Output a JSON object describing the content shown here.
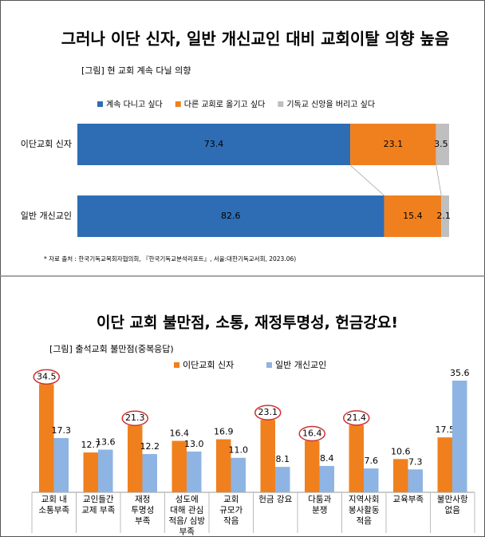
{
  "chart_data": [
    {
      "type": "stacked-bar-horizontal",
      "title": "그러나 이단 신자, 일반 개신교인 대비 교회이탈 의향 높음",
      "subtitle": "[그림] 현 교회 계속 다닐 의향",
      "note": "* 자료 출처 : 한국기독교목회자협의회, 『한국기독교분석리포트』, 서울:대한기독교서회, 2023.06)",
      "categories": [
        "이단교회 신자",
        "일반 개신교인"
      ],
      "series": [
        {
          "name": "계속 다니고 싶다",
          "color": "#2e6db4",
          "values": [
            73.4,
            82.6
          ]
        },
        {
          "name": "다른 교회로 옮기고 싶다",
          "color": "#f0801e",
          "values": [
            23.1,
            15.4
          ]
        },
        {
          "name": "기독교 신앙을 버리고 싶다",
          "color": "#bfbfbf",
          "values": [
            3.5,
            2.1
          ]
        }
      ]
    },
    {
      "type": "bar",
      "title": "이단 교회 불만점, 소통, 재정투명성, 헌금강요!",
      "subtitle": "[그림] 출석교회 불만점(중복응답)",
      "categories": [
        "교회 내\n소통부족",
        "교인들간\n교제 부족",
        "재정\n투명성\n부족",
        "성도에\n대해 관심\n적음/ 심방\n부족",
        "교회\n규모가\n작음",
        "헌금 강요",
        "다툼과\n분쟁",
        "지역사회\n봉사활동\n적음",
        "교육부족",
        "불만사항\n없음"
      ],
      "series": [
        {
          "name": "이단교회 신자",
          "color": "#f0801e",
          "values": [
            34.5,
            12.7,
            21.3,
            16.4,
            16.9,
            23.1,
            16.4,
            21.4,
            10.6,
            17.5
          ],
          "circled": [
            true,
            false,
            true,
            false,
            false,
            true,
            true,
            true,
            false,
            false
          ]
        },
        {
          "name": "일반 개신교인",
          "color": "#8eb4e3",
          "values": [
            17.3,
            13.6,
            12.2,
            13.0,
            11.0,
            8.1,
            8.4,
            7.6,
            7.3,
            35.6
          ],
          "value_labels": [
            "17.3",
            "13.6",
            "12.2",
            "13.0",
            "11.0",
            "8.1",
            "8.4",
            "7.6",
            "7.3",
            "35.6"
          ]
        }
      ]
    }
  ]
}
